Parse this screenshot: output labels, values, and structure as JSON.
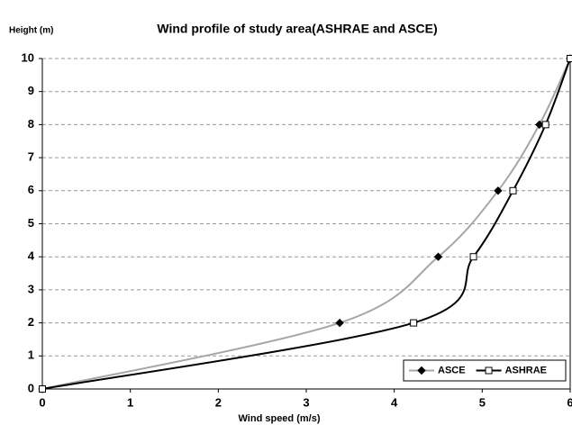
{
  "chart_data": {
    "type": "line",
    "title": "Wind profile of study area(ASHRAE and ASCE)",
    "y_label": "Height (m)",
    "x_label": "Wind speed (m/s)",
    "xlim": [
      0,
      6
    ],
    "xticks": [
      0,
      1,
      2,
      3,
      4,
      5,
      6
    ],
    "ylim": [
      0,
      10
    ],
    "yticks": [
      0,
      1,
      2,
      3,
      4,
      5,
      6,
      7,
      8,
      9,
      10
    ],
    "grid": true,
    "legend": "lower right",
    "series": [
      {
        "name": "ASCE",
        "color": "#a6a6a6",
        "marker": "diamond",
        "marker_color": "#000000",
        "x": [
          0,
          3.38,
          4.5,
          5.18,
          5.65,
          6
        ],
        "values": [
          0,
          2,
          4,
          6,
          8,
          10
        ]
      },
      {
        "name": "ASHRAE",
        "color": "#000000",
        "marker": "square",
        "marker_color": "#ffffff",
        "x": [
          0,
          4.22,
          4.9,
          5.35,
          5.72,
          6
        ],
        "values": [
          0,
          2,
          4,
          6,
          8,
          10
        ]
      }
    ]
  }
}
